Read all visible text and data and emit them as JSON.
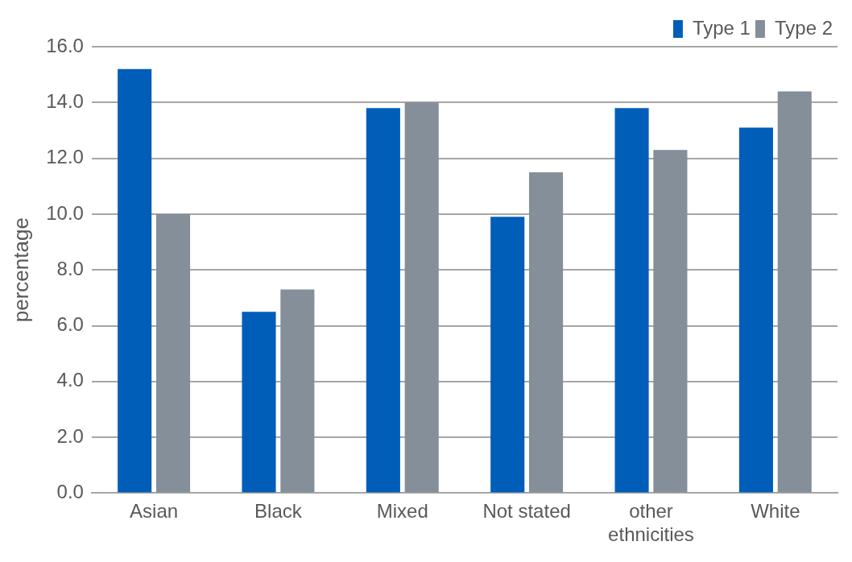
{
  "chart_data": {
    "type": "bar",
    "ylabel": "percentage",
    "categories": [
      "Asian",
      "Black",
      "Mixed",
      "Not stated",
      "other ethnicities",
      "White"
    ],
    "series": [
      {
        "name": "Type 1",
        "color": "#005eb8",
        "values": [
          15.2,
          6.5,
          13.8,
          9.9,
          13.8,
          13.1
        ]
      },
      {
        "name": "Type 2",
        "color": "#848f99",
        "values": [
          10.0,
          7.3,
          14.0,
          11.5,
          12.3,
          14.4
        ]
      }
    ],
    "ylim": [
      0,
      16
    ],
    "yticks": [
      {
        "value": 0,
        "label": "0.0"
      },
      {
        "value": 2,
        "label": "2.0"
      },
      {
        "value": 4,
        "label": "4.0"
      },
      {
        "value": 6,
        "label": "6.0"
      },
      {
        "value": 8,
        "label": "8.0"
      },
      {
        "value": 10,
        "label": "10.0"
      },
      {
        "value": 12,
        "label": "12.0"
      },
      {
        "value": 14,
        "label": "14.0"
      },
      {
        "value": 16,
        "label": "16.0"
      }
    ],
    "grid": "y",
    "legend": "top right"
  }
}
